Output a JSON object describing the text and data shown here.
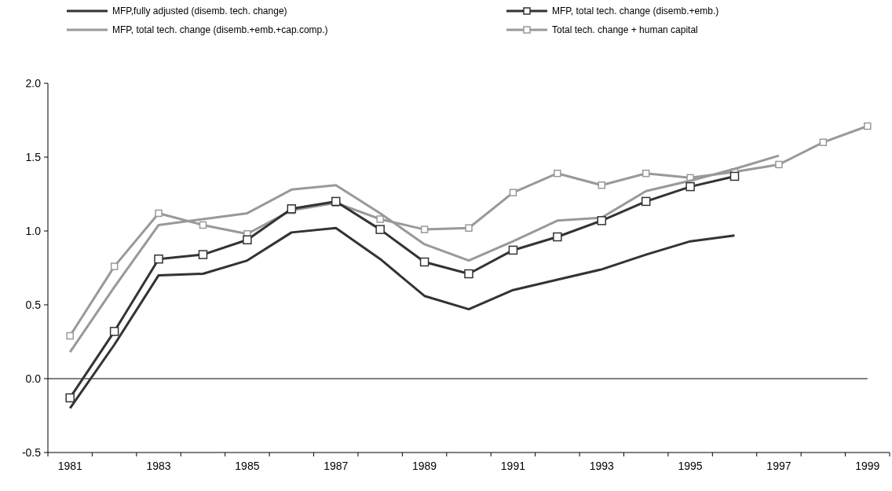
{
  "chart_data": {
    "type": "line",
    "categories": [
      "1981",
      null,
      "1983",
      null,
      "1985",
      null,
      "1987",
      null,
      "1989",
      null,
      "1991",
      null,
      "1993",
      null,
      "1995",
      null,
      "1997",
      null,
      "1999"
    ],
    "series": [
      {
        "name": "MFP,fully adjusted (disemb. tech. change)",
        "color": "#333333",
        "marker": "none",
        "values": [
          -0.2,
          0.23,
          0.7,
          0.71,
          0.8,
          0.99,
          1.02,
          0.81,
          0.56,
          0.47,
          0.6,
          0.67,
          0.74,
          0.84,
          0.93,
          0.97,
          null,
          null,
          null
        ]
      },
      {
        "name": "MFP, total tech. change (disemb.+emb.)",
        "color": "#333333",
        "marker": "square",
        "values": [
          -0.13,
          0.32,
          0.81,
          0.84,
          0.94,
          1.15,
          1.2,
          1.01,
          0.79,
          0.71,
          0.87,
          0.96,
          1.07,
          1.2,
          1.3,
          1.37,
          null,
          null,
          null
        ]
      },
      {
        "name": "MFP, total tech. change (disemb.+emb.+cap.comp.)",
        "color": "#999999",
        "marker": "none",
        "values": [
          0.18,
          0.62,
          1.04,
          1.08,
          1.12,
          1.28,
          1.31,
          1.12,
          0.91,
          0.8,
          0.93,
          1.07,
          1.09,
          1.27,
          1.34,
          1.42,
          1.51,
          null,
          null
        ]
      },
      {
        "name": "Total tech. change + human capital",
        "color": "#999999",
        "marker": "square",
        "values": [
          0.29,
          0.76,
          1.12,
          1.04,
          0.98,
          1.14,
          1.19,
          1.08,
          1.01,
          1.02,
          1.26,
          1.39,
          1.31,
          1.39,
          1.36,
          1.4,
          1.45,
          1.6,
          1.71
        ]
      }
    ],
    "ylim": [
      -0.5,
      2.0
    ],
    "yticks": [
      {
        "value": -0.5,
        "label": "-0.5"
      },
      {
        "value": 0,
        "label": "0.0"
      },
      {
        "value": 0.5,
        "label": "0.5"
      },
      {
        "value": 1,
        "label": "1.0"
      },
      {
        "value": 1.5,
        "label": "1.5"
      },
      {
        "value": 2,
        "label": "2.0"
      }
    ],
    "ref_lines": [
      {
        "axis": "y",
        "value": 0,
        "color": "#000000"
      }
    ],
    "legend": "top",
    "grid": false
  }
}
